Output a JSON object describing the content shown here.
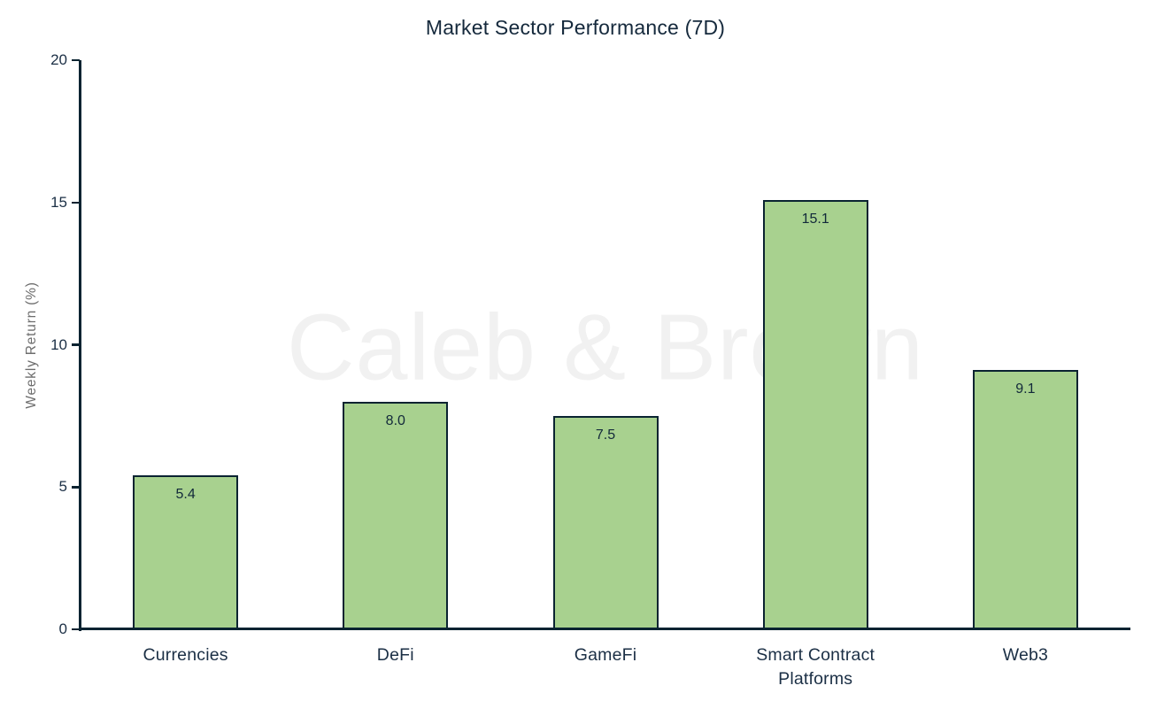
{
  "title": "Market Sector Performance (7D)",
  "watermark": "Caleb & Brown",
  "colors": {
    "background": "#ffffff",
    "bar_fill": "#a8d18f",
    "bar_border": "#0a2331",
    "axis": "#0a2331",
    "title_text": "#15293c",
    "tick_text": "#1b2f45",
    "axis_label_text": "#6e6e6e",
    "watermark_text": "#f1f1f1"
  },
  "chart_data": {
    "type": "bar",
    "title": "Market Sector Performance (7D)",
    "categories": [
      "Currencies",
      "DeFi",
      "GameFi",
      "Smart Contract Platforms",
      "Web3"
    ],
    "values": [
      5.4,
      8.0,
      7.5,
      15.1,
      9.1
    ],
    "value_labels": [
      "5.4",
      "8.0",
      "7.5",
      "15.1",
      "9.1"
    ],
    "xlabel": "",
    "ylabel": "Weekly Return (%)",
    "ylim": [
      0,
      20
    ],
    "yticks": [
      0,
      5,
      10,
      15,
      20
    ],
    "grid": false,
    "legend": false,
    "bar_value_labels_inside": true,
    "watermark": "Caleb & Brown"
  }
}
